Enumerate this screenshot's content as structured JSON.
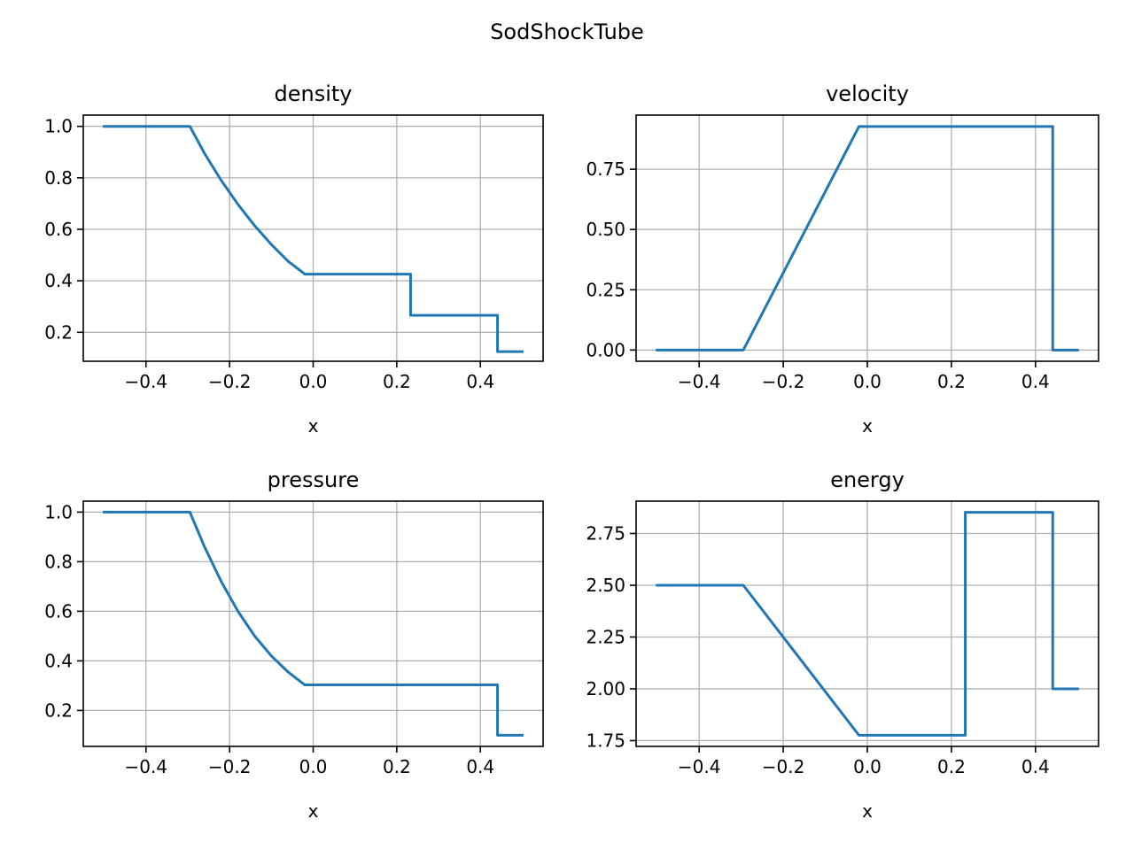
{
  "figure": {
    "suptitle": "SodShockTube",
    "line_color": "#1f77b4"
  },
  "chart_data": [
    {
      "type": "line",
      "title": "density",
      "xlabel": "x",
      "ylabel": "",
      "xlim": [
        -0.55,
        0.55
      ],
      "ylim": [
        0.0875,
        1.0437
      ],
      "grid": true,
      "xticks": [
        -0.4,
        -0.2,
        0.0,
        0.2,
        0.4
      ],
      "xtick_labels": [
        "−0.4",
        "−0.2",
        "0.0",
        "0.2",
        "0.4"
      ],
      "yticks": [
        0.2,
        0.4,
        0.6,
        0.8,
        1.0
      ],
      "ytick_labels": [
        "0.2",
        "0.4",
        "0.6",
        "0.8",
        "1.0"
      ],
      "series": [
        {
          "x": [
            -0.5,
            -0.295,
            -0.26,
            -0.22,
            -0.18,
            -0.14,
            -0.1,
            -0.06,
            -0.02,
            0.233,
            0.233,
            0.441,
            0.441,
            0.5
          ],
          "y": [
            1.0,
            1.0,
            0.895,
            0.79,
            0.697,
            0.614,
            0.541,
            0.476,
            0.426,
            0.426,
            0.266,
            0.266,
            0.125,
            0.125
          ]
        }
      ]
    },
    {
      "type": "line",
      "title": "velocity",
      "xlabel": "x",
      "ylabel": "",
      "xlim": [
        -0.55,
        0.55
      ],
      "ylim": [
        -0.0465,
        0.9745
      ],
      "grid": true,
      "xticks": [
        -0.4,
        -0.2,
        0.0,
        0.2,
        0.4
      ],
      "xtick_labels": [
        "−0.4",
        "−0.2",
        "0.0",
        "0.2",
        "0.4"
      ],
      "yticks": [
        0.0,
        0.25,
        0.5,
        0.75
      ],
      "ytick_labels": [
        "0.00",
        "0.25",
        "0.50",
        "0.75"
      ],
      "series": [
        {
          "x": [
            -0.5,
            -0.295,
            -0.02,
            0.441,
            0.441,
            0.5
          ],
          "y": [
            0.0,
            0.0,
            0.927,
            0.927,
            0.0,
            0.0
          ]
        }
      ]
    },
    {
      "type": "line",
      "title": "pressure",
      "xlabel": "x",
      "ylabel": "",
      "xlim": [
        -0.55,
        0.55
      ],
      "ylim": [
        0.055,
        1.0442
      ],
      "grid": true,
      "xticks": [
        -0.4,
        -0.2,
        0.0,
        0.2,
        0.4
      ],
      "xtick_labels": [
        "−0.4",
        "−0.2",
        "0.0",
        "0.2",
        "0.4"
      ],
      "yticks": [
        0.2,
        0.4,
        0.6,
        0.8,
        1.0
      ],
      "ytick_labels": [
        "0.2",
        "0.4",
        "0.6",
        "0.8",
        "1.0"
      ],
      "series": [
        {
          "x": [
            -0.5,
            -0.295,
            -0.26,
            -0.22,
            -0.18,
            -0.14,
            -0.1,
            -0.06,
            -0.02,
            0.441,
            0.441,
            0.5
          ],
          "y": [
            1.0,
            1.0,
            0.86,
            0.72,
            0.6,
            0.5,
            0.42,
            0.355,
            0.303,
            0.303,
            0.1,
            0.1
          ]
        }
      ]
    },
    {
      "type": "line",
      "title": "energy",
      "xlabel": "x",
      "ylabel": "",
      "xlim": [
        -0.55,
        0.55
      ],
      "ylim": [
        1.722,
        2.906
      ],
      "grid": true,
      "xticks": [
        -0.4,
        -0.2,
        0.0,
        0.2,
        0.4
      ],
      "xtick_labels": [
        "−0.4",
        "−0.2",
        "0.0",
        "0.2",
        "0.4"
      ],
      "yticks": [
        1.75,
        2.0,
        2.25,
        2.5,
        2.75
      ],
      "ytick_labels": [
        "1.75",
        "2.00",
        "2.25",
        "2.50",
        "2.75"
      ],
      "series": [
        {
          "x": [
            -0.5,
            -0.295,
            -0.02,
            0.233,
            0.233,
            0.441,
            0.441,
            0.5
          ],
          "y": [
            2.5,
            2.5,
            1.776,
            1.776,
            2.852,
            2.852,
            2.0,
            2.0
          ]
        }
      ]
    }
  ]
}
